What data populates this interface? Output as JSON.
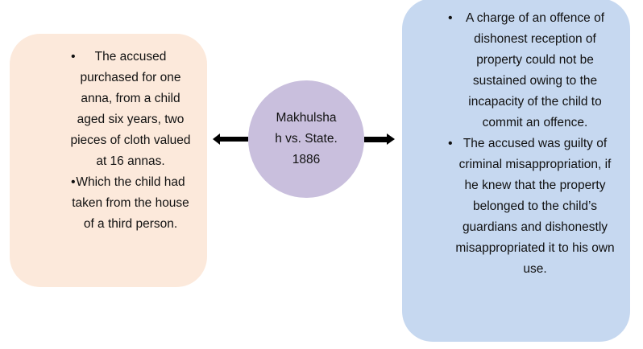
{
  "left_box": {
    "color": "#fce9db",
    "items": [
      "The accused purchased for one anna, from a child aged six years, two pieces of cloth valued at 16 annas.",
      "Which the child had taken from the house of a third person."
    ]
  },
  "center": {
    "color": "#c9bfdd",
    "title": "Makhulshah vs. State. 1886"
  },
  "right_box": {
    "color": "#c6d8f0",
    "items": [
      "A charge of an offence of dishonest reception of property could not be sustained owing to the incapacity of the child to commit an offence.",
      "The accused was guilty of criminal misappropriation, if he knew that the property belonged to the child’s guardians and dishonestly misappropriated it to his own use."
    ]
  },
  "arrows": {
    "left": "arrow-left-icon",
    "right": "arrow-right-icon"
  }
}
